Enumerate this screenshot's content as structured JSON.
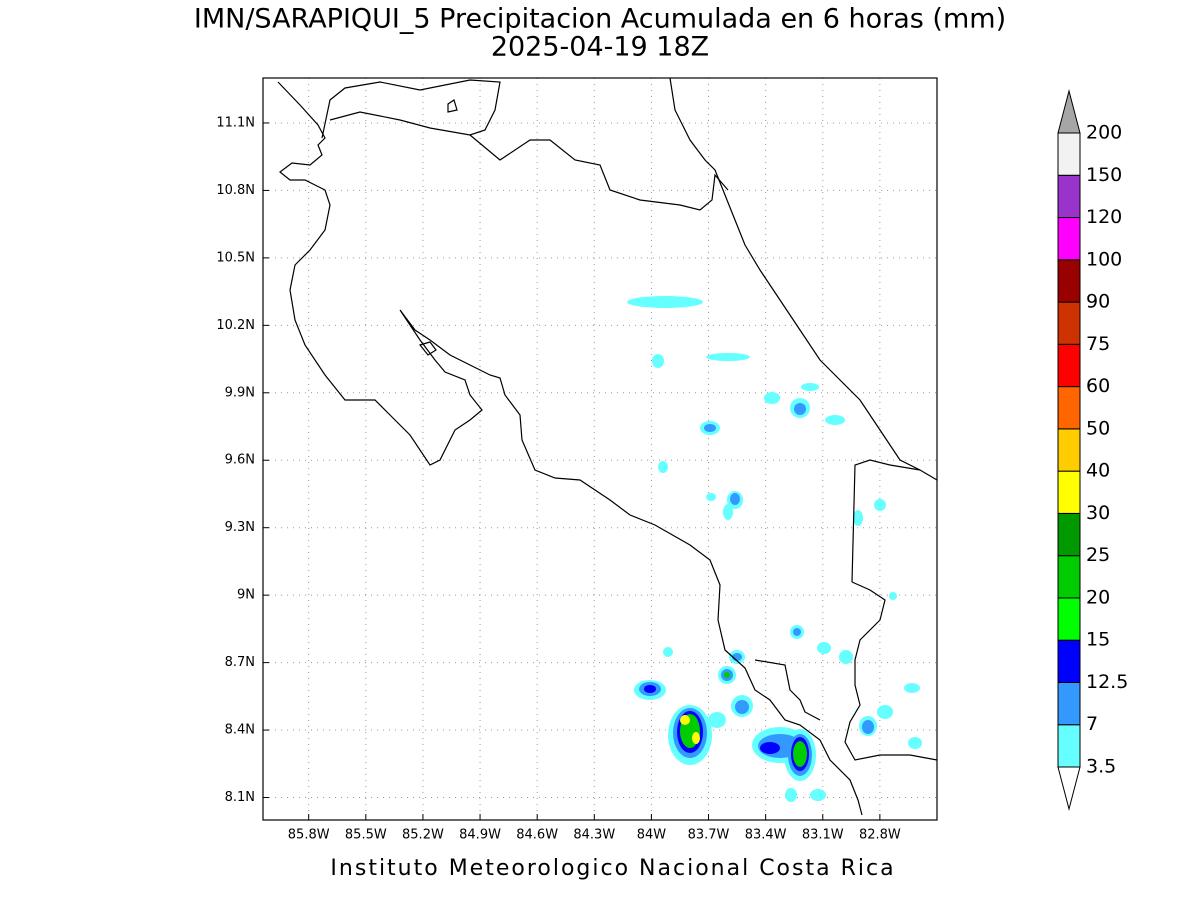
{
  "title": "IMN/SARAPIQUI_5 Precipitacion Acumulada en 6 horas (mm)",
  "subtitle": "2025-04-19 18Z",
  "footer": "Instituto Meteorologico Nacional Costa Rica",
  "map": {
    "xlim": [
      -86.04,
      -82.5
    ],
    "ylim": [
      8.0,
      11.3
    ],
    "grid": true,
    "xticks": [
      {
        "value": -85.8,
        "label": "85.8W"
      },
      {
        "value": -85.5,
        "label": "85.5W"
      },
      {
        "value": -85.2,
        "label": "85.2W"
      },
      {
        "value": -84.9,
        "label": "84.9W"
      },
      {
        "value": -84.6,
        "label": "84.6W"
      },
      {
        "value": -84.3,
        "label": "84.3W"
      },
      {
        "value": -84,
        "label": "84W"
      },
      {
        "value": -83.7,
        "label": "83.7W"
      },
      {
        "value": -83.4,
        "label": "83.4W"
      },
      {
        "value": -83.1,
        "label": "83.1W"
      },
      {
        "value": -82.8,
        "label": "82.8W"
      }
    ],
    "yticks": [
      {
        "value": 8.1,
        "label": "8.1N"
      },
      {
        "value": 8.4,
        "label": "8.4N"
      },
      {
        "value": 8.7,
        "label": "8.7N"
      },
      {
        "value": 9,
        "label": "9N"
      },
      {
        "value": 9.3,
        "label": "9.3N"
      },
      {
        "value": 9.6,
        "label": "9.6N"
      },
      {
        "value": 9.9,
        "label": "9.9N"
      },
      {
        "value": 10.2,
        "label": "10.2N"
      },
      {
        "value": 10.5,
        "label": "10.5N"
      },
      {
        "value": 10.8,
        "label": "10.8N"
      },
      {
        "value": 11.1,
        "label": "11.1N"
      }
    ]
  },
  "colorbar": {
    "levels": [
      3.5,
      7,
      12.5,
      15,
      20,
      25,
      30,
      40,
      50,
      60,
      75,
      90,
      100,
      120,
      150,
      200
    ],
    "colors": [
      "#ffffff",
      "#66ffff",
      "#3399ff",
      "#0000ff",
      "#00ff00",
      "#00cc00",
      "#009900",
      "#ffff00",
      "#ffcc00",
      "#ff6600",
      "#ff0000",
      "#cc3300",
      "#990000",
      "#ff00ff",
      "#9933cc",
      "#f2f2f2",
      "#a6a6a6"
    ]
  }
}
